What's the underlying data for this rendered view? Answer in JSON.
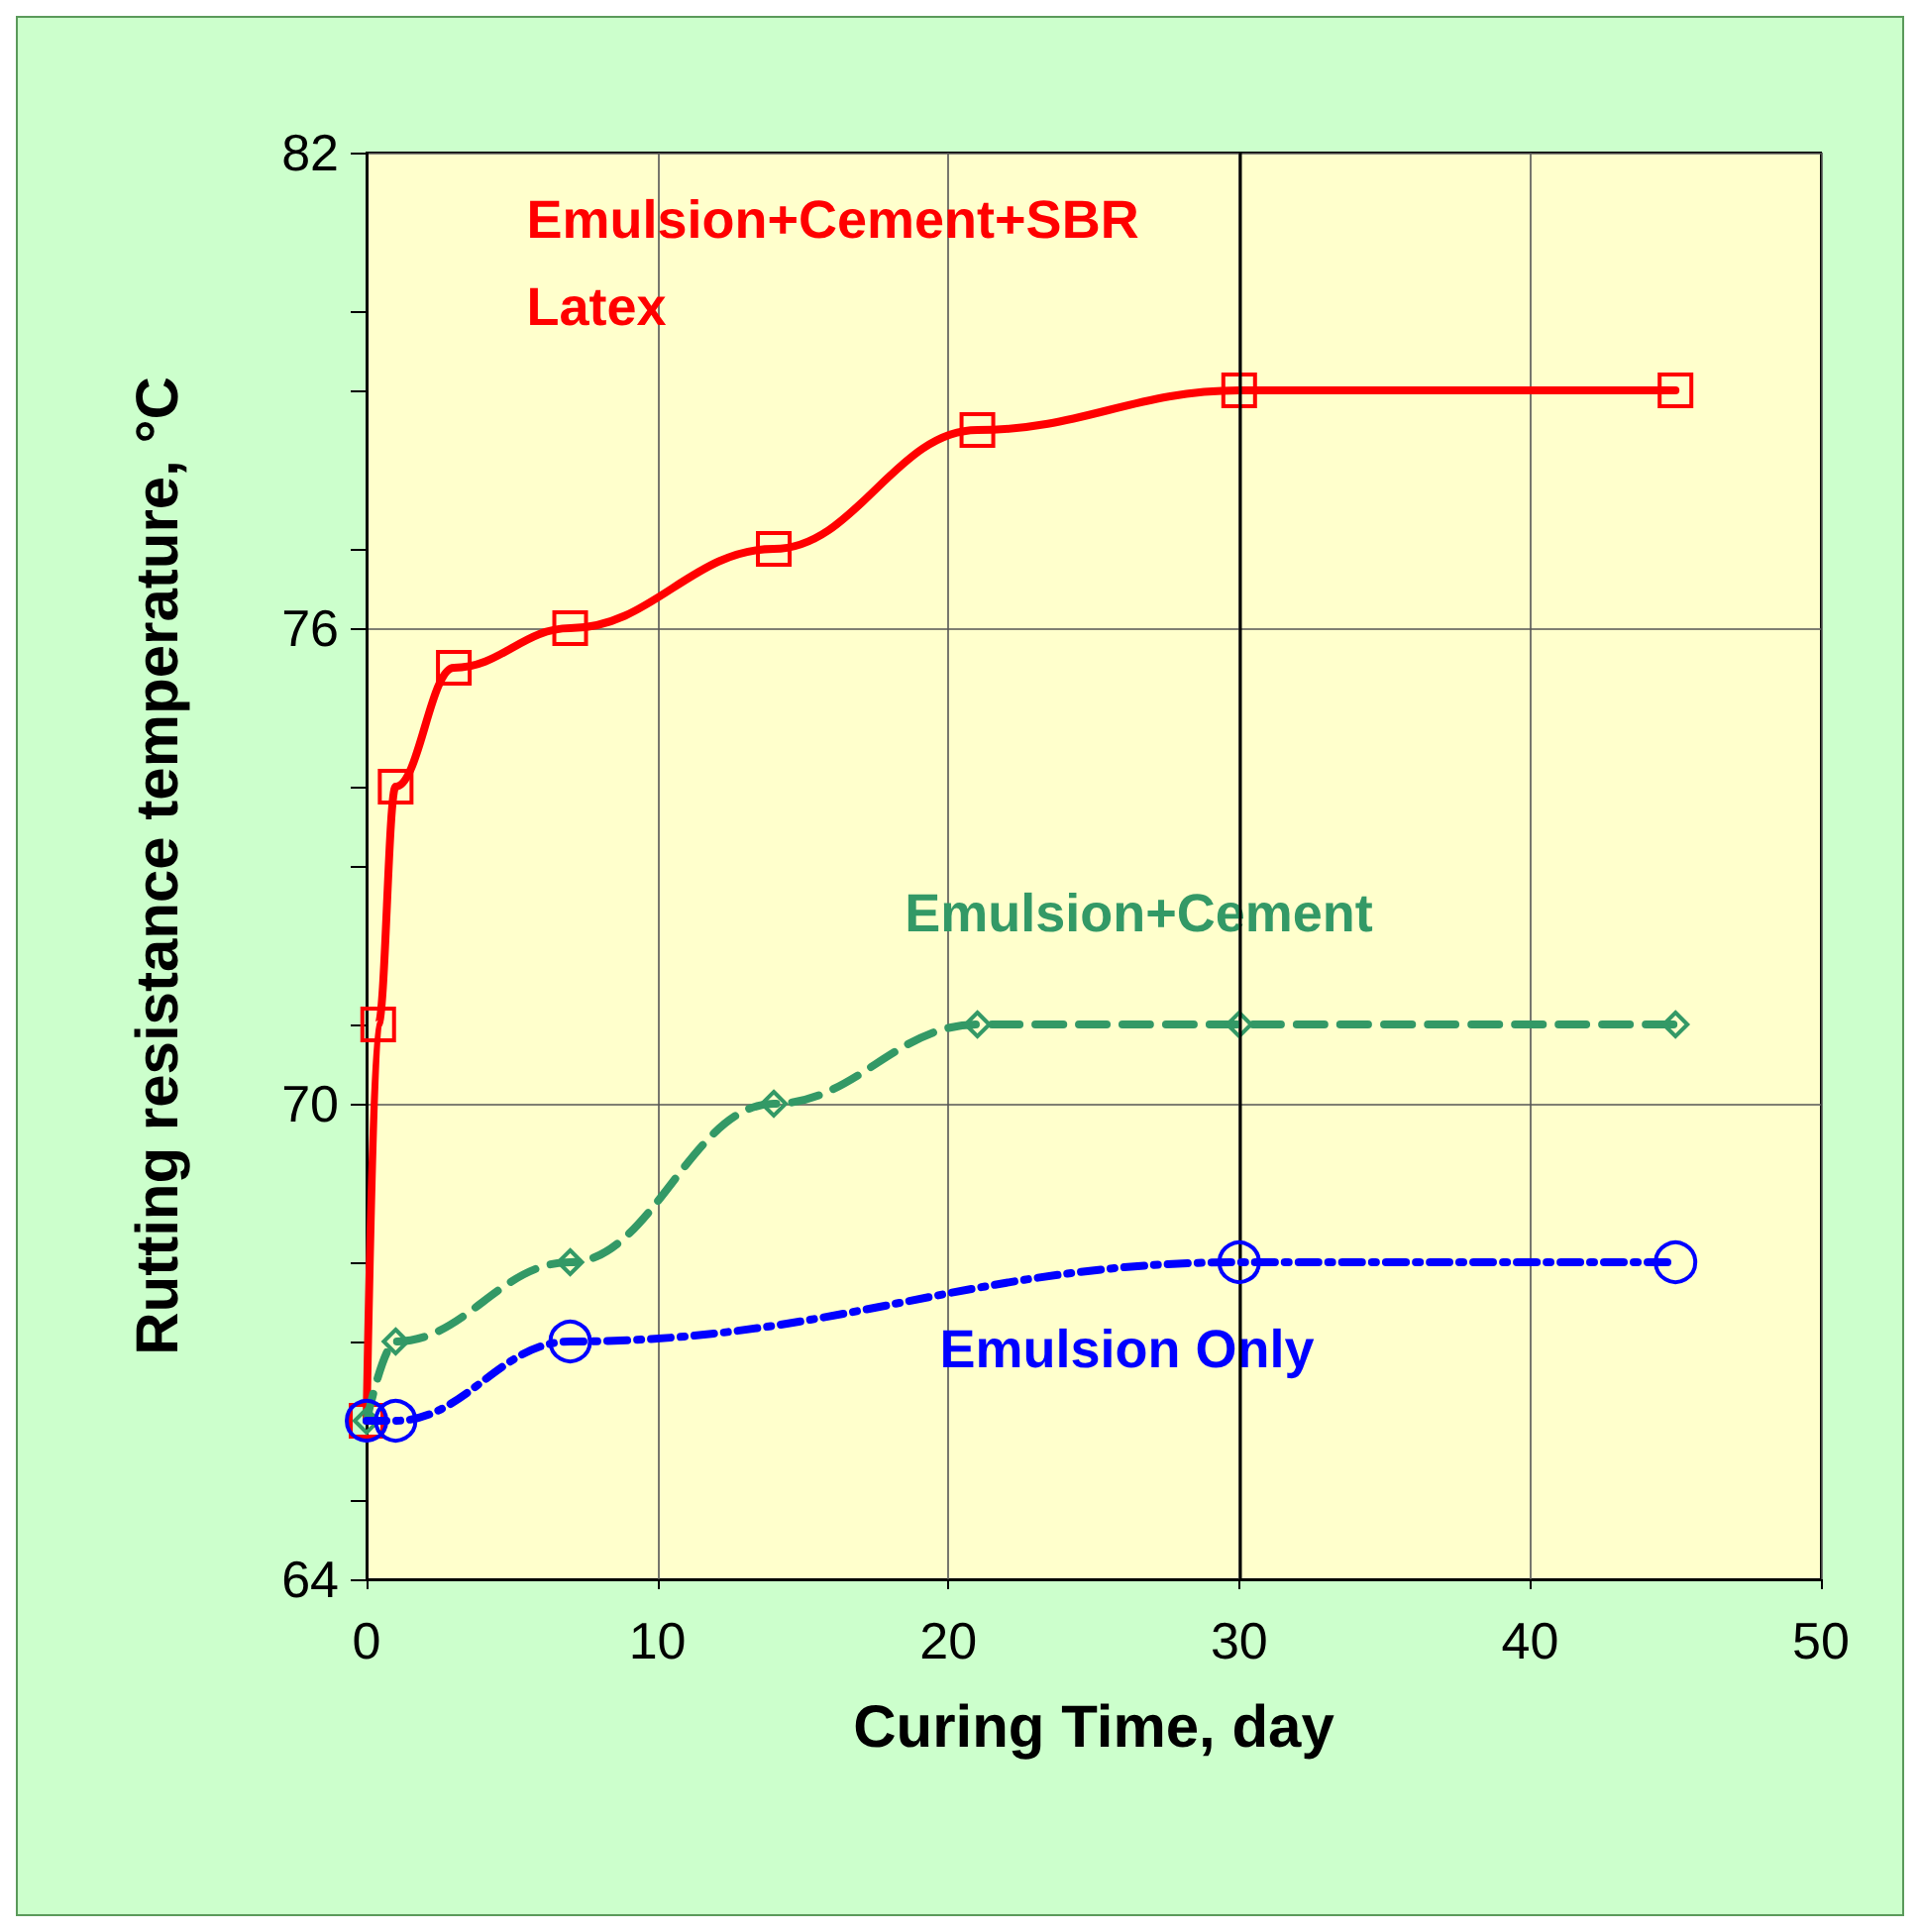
{
  "chart_data": {
    "type": "line",
    "xlabel": "Curing Time, day",
    "ylabel": "Rutting resistance temperature, °C",
    "xlim": [
      0,
      50
    ],
    "xticks": [
      0,
      10,
      20,
      30,
      40,
      50
    ],
    "ylim": [
      64,
      82
    ],
    "yticks": [
      64,
      70,
      76,
      82
    ],
    "grid": true,
    "legend": false,
    "ref_lines": [
      {
        "axis": "x",
        "value": 30,
        "color": "#000000",
        "line_style": "solid"
      }
    ],
    "series": [
      {
        "name": "Emulsion+Cement+SBR\nLatex",
        "color": "#ff0000",
        "marker": "square",
        "line_style": "solid",
        "x": [
          0,
          0.4,
          1,
          3,
          7,
          14,
          21,
          30,
          45
        ],
        "values": [
          66,
          71,
          74,
          75.5,
          76,
          77,
          78.5,
          79,
          79
        ]
      },
      {
        "name": "Emulsion+Cement",
        "color": "#339966",
        "marker": "diamond",
        "line_style": "dashed",
        "x": [
          0,
          1,
          7,
          14,
          21,
          30,
          45
        ],
        "values": [
          66,
          67,
          68,
          70,
          71,
          71,
          71
        ]
      },
      {
        "name": "Emulsion Only",
        "color": "#0000ff",
        "marker": "circle",
        "line_style": "dotted",
        "x": [
          0,
          1,
          7,
          30,
          45
        ],
        "values": [
          66,
          66,
          67,
          68,
          68
        ]
      }
    ]
  }
}
